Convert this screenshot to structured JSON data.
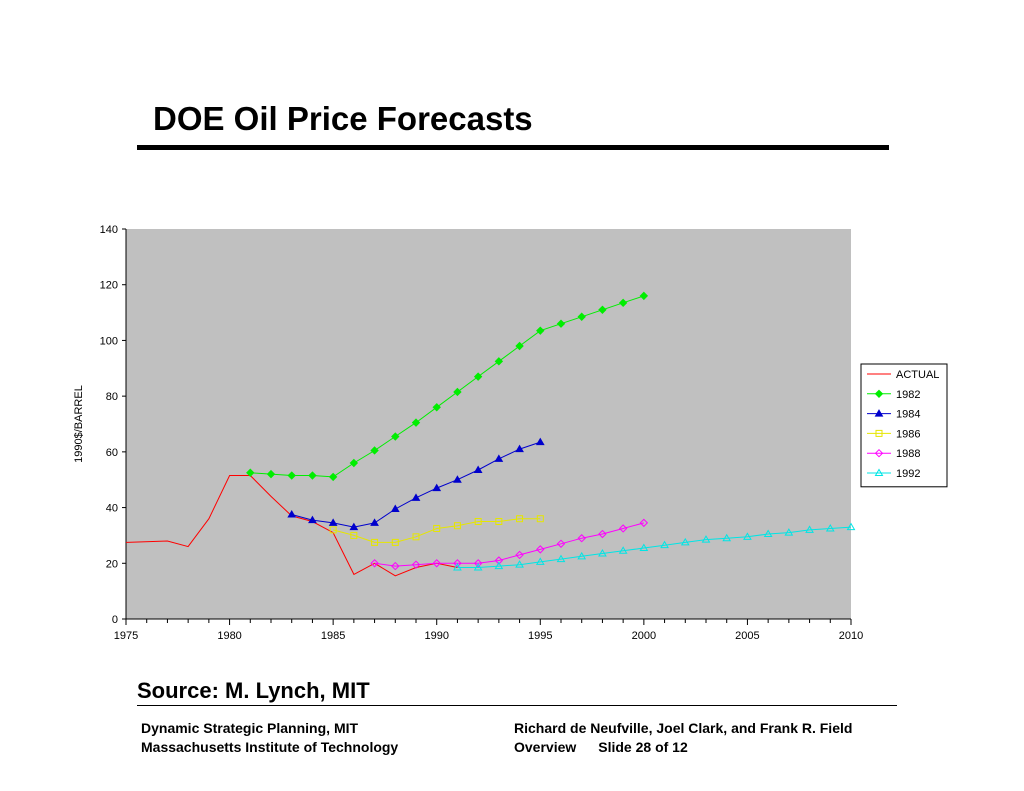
{
  "slide": {
    "title": "DOE Oil Price Forecasts",
    "source": "Source: M. Lynch, MIT",
    "footer_left_line1": "Dynamic Strategic Planning, MIT",
    "footer_left_line2": "Massachusetts Institute of Technology",
    "footer_right_line1": "Richard de Neufville, Joel Clark, and Frank  R. Field",
    "footer_right_overview": "Overview",
    "footer_right_slide": "Slide 28 of 12"
  },
  "chart_data": {
    "type": "line",
    "title": "",
    "xlabel": "",
    "ylabel": "1990$/BARREL",
    "xlim": [
      1975,
      2010
    ],
    "ylim": [
      0,
      140
    ],
    "xticks": [
      1975,
      1980,
      1985,
      1990,
      1995,
      2000,
      2005,
      2010
    ],
    "yticks": [
      0,
      20,
      40,
      60,
      80,
      100,
      120,
      140
    ],
    "plot_background": "#c0c0c0",
    "grid": false,
    "legend_position": "right",
    "series": [
      {
        "name": "ACTUAL",
        "color": "#ff0000",
        "marker": "none",
        "x": [
          1975,
          1977,
          1978,
          1979,
          1980,
          1981,
          1982,
          1983,
          1984,
          1985,
          1986,
          1987,
          1988,
          1989,
          1990,
          1991
        ],
        "y": [
          27.5,
          28,
          26,
          36,
          51.5,
          51.5,
          44,
          37,
          35,
          31,
          16,
          20,
          15.5,
          18.5,
          20,
          18.5
        ]
      },
      {
        "name": "1982",
        "color": "#00ee00",
        "marker": "diamond-filled",
        "x": [
          1981,
          1982,
          1983,
          1984,
          1985,
          1986,
          1987,
          1988,
          1989,
          1990,
          1991,
          1992,
          1993,
          1994,
          1995,
          1996,
          1997,
          1998,
          1999,
          2000
        ],
        "y": [
          52.5,
          52,
          51.5,
          51.5,
          51,
          56,
          60.5,
          65.5,
          70.5,
          76,
          81.5,
          87,
          92.5,
          98,
          103.5,
          106,
          108.5,
          111,
          113.5,
          116
        ]
      },
      {
        "name": "1984",
        "color": "#0000cc",
        "marker": "triangle-filled",
        "x": [
          1983,
          1984,
          1985,
          1986,
          1987,
          1988,
          1989,
          1990,
          1991,
          1992,
          1993,
          1994,
          1995
        ],
        "y": [
          37.5,
          35.5,
          34.5,
          33,
          34.5,
          39.5,
          43.5,
          47,
          50,
          53.5,
          57.5,
          61,
          63.5
        ]
      },
      {
        "name": "1986",
        "color": "#e6e600",
        "marker": "square-open",
        "x": [
          1985,
          1986,
          1987,
          1988,
          1989,
          1990,
          1991,
          1992,
          1993,
          1994,
          1995
        ],
        "y": [
          32,
          30,
          27.5,
          27.5,
          29.5,
          32.5,
          33.5,
          35,
          35,
          36,
          36
        ]
      },
      {
        "name": "1988",
        "color": "#ff00ff",
        "marker": "diamond-open",
        "x": [
          1987,
          1988,
          1989,
          1990,
          1991,
          1992,
          1993,
          1994,
          1995,
          1996,
          1997,
          1998,
          1999,
          2000
        ],
        "y": [
          20,
          19,
          19.5,
          20,
          20,
          20,
          21,
          23,
          25,
          27,
          29,
          30.5,
          32.5,
          34.5
        ]
      },
      {
        "name": "1992",
        "color": "#00e5e5",
        "marker": "triangle-open",
        "x": [
          1991,
          1992,
          1993,
          1994,
          1995,
          1996,
          1997,
          1998,
          1999,
          2000,
          2001,
          2002,
          2003,
          2004,
          2005,
          2006,
          2007,
          2008,
          2009,
          2010
        ],
        "y": [
          18.5,
          18.5,
          19,
          19.5,
          20.5,
          21.5,
          22.5,
          23.5,
          24.5,
          25.5,
          26.5,
          27.5,
          28.5,
          29,
          29.5,
          30.5,
          31,
          32,
          32.5,
          33
        ]
      }
    ]
  }
}
